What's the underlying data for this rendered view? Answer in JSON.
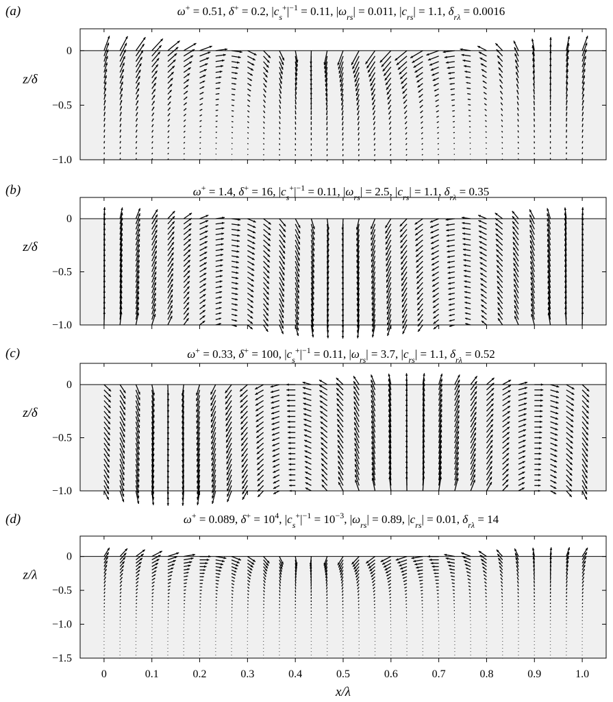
{
  "figure": {
    "xlabel": "x/λ",
    "x_ticks": [
      "0",
      "0.1",
      "0.2",
      "0.3",
      "0.4",
      "0.5",
      "0.6",
      "0.7",
      "0.8",
      "0.9",
      "1.0"
    ]
  },
  "chart_data": [
    {
      "type": "quiver",
      "panel_label": "(a)",
      "title": "ω+ = 0.51, δ+ = 0.2, |c_s+|^−1 = 0.11, |ω_rs| = 0.011, |c_rs| = 1.1, δ_rλ = 0.0016",
      "title_parts": {
        "omega_plus": "0.51",
        "delta_plus": "0.2",
        "cs_inv": "0.11",
        "omega_rs": "0.011",
        "c_rs": "1.1",
        "delta_rlambda": "0.0016"
      },
      "ylabel": "z/δ",
      "y_ticks": [
        "0",
        "−0.5",
        "−1.0"
      ],
      "ylim": [
        -1.0,
        0.2
      ],
      "xlim": [
        -0.05,
        1.05
      ],
      "columns": 31,
      "column_x_range": [
        0,
        1.0
      ],
      "field": {
        "surface_amp": 0.15,
        "decay_depth": 0.35,
        "tilt": 0.8,
        "phase": 0.0
      }
    },
    {
      "type": "quiver",
      "panel_label": "(b)",
      "title": "ω+ = 1.4, δ+ = 16, |c_s+|^−1 = 0.11, |ω_rs| = 2.5, |c_rs| = 1.1, δ_rλ = 0.35",
      "title_parts": {
        "omega_plus": "1.4",
        "delta_plus": "16",
        "cs_inv": "0.11",
        "omega_rs": "2.5",
        "c_rs": "1.1",
        "delta_rlambda": "0.35"
      },
      "ylabel": "z/δ",
      "y_ticks": [
        "0",
        "−0.5",
        "−1.0"
      ],
      "ylim": [
        -1.0,
        0.2
      ],
      "xlim": [
        -0.05,
        1.05
      ],
      "columns": 31,
      "column_x_range": [
        0,
        1.0
      ],
      "field": {
        "surface_amp": 0.12,
        "decay_depth": 2.0,
        "tilt": 0.1,
        "phase": 0.0
      }
    },
    {
      "type": "quiver",
      "panel_label": "(c)",
      "title": "ω+ = 0.33, δ+ = 100, |c_s+|^−1 = 0.11, |ω_rs| = 3.7, |c_rs| = 1.1, δ_rλ = 0.52",
      "title_parts": {
        "omega_plus": "0.33",
        "delta_plus": "100",
        "cs_inv": "0.11",
        "omega_rs": "3.7",
        "c_rs": "1.1",
        "delta_rlambda": "0.52"
      },
      "ylabel": "z/δ",
      "y_ticks": [
        "0",
        "−0.5",
        "−1.0"
      ],
      "ylim": [
        -1.0,
        0.2
      ],
      "xlim": [
        -0.05,
        1.05
      ],
      "columns": 31,
      "column_x_range": [
        0,
        1.0
      ],
      "field": {
        "surface_amp": 0.12,
        "decay_depth": 2.5,
        "tilt": 0.1,
        "phase": 0.35
      }
    },
    {
      "type": "quiver",
      "panel_label": "(d)",
      "title": "ω+ = 0.089, δ+ = 10^4, |c_s+|^−1 = 10^−3, |ω_rs| = 0.89, |c_rs| = 0.01, δ_rλ = 14",
      "title_parts": {
        "omega_plus": "0.089",
        "delta_plus": "10",
        "delta_plus_exp": "4",
        "cs_inv": "10",
        "cs_inv_exp": "−3",
        "omega_rs": "0.89",
        "c_rs": "0.01",
        "delta_rlambda": "14"
      },
      "ylabel": "z/λ",
      "y_ticks": [
        "0",
        "−0.5",
        "−1.0",
        "−1.5"
      ],
      "ylim": [
        -1.5,
        0.3
      ],
      "xlim": [
        -0.05,
        1.05
      ],
      "columns": 31,
      "column_x_range": [
        0,
        1.0
      ],
      "field": {
        "surface_amp": 0.15,
        "decay_depth": 0.3,
        "tilt": 0.3,
        "phase": 0.05
      }
    }
  ],
  "colors": {
    "panel_fill": "#f0f0f0",
    "ink": "#000000"
  }
}
